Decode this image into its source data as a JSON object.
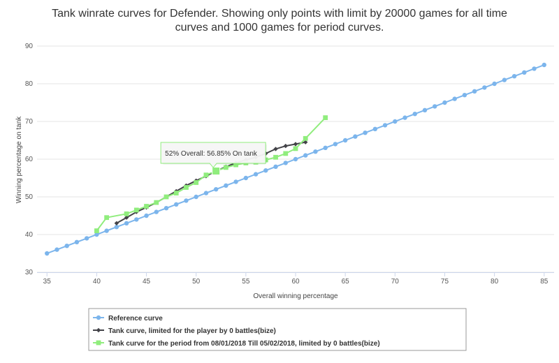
{
  "chart_data": {
    "type": "line",
    "title_line1": "Tank winrate curves for Defender. Showing only points with limit by 20000 games for all time",
    "title_line2": "curves and 1000 games for period curves.",
    "xlabel": "Overall winning percentage",
    "ylabel": "Winning percentage on tank",
    "xlim": [
      34,
      86
    ],
    "ylim": [
      30,
      90
    ],
    "x_ticks": [
      35,
      40,
      45,
      50,
      55,
      60,
      65,
      70,
      75,
      80,
      85
    ],
    "y_ticks": [
      30,
      40,
      50,
      60,
      70,
      80,
      90
    ],
    "grid": true,
    "legend_position": "bottom-left",
    "series": [
      {
        "name": "Reference curve",
        "color": "#7cb5ec",
        "marker": "circle",
        "x": [
          35,
          36,
          37,
          38,
          39,
          40,
          41,
          42,
          43,
          44,
          45,
          46,
          47,
          48,
          49,
          50,
          51,
          52,
          53,
          54,
          55,
          56,
          57,
          58,
          59,
          60,
          61,
          62,
          63,
          64,
          65,
          66,
          67,
          68,
          69,
          70,
          71,
          72,
          73,
          74,
          75,
          76,
          77,
          78,
          79,
          80,
          81,
          82,
          83,
          84,
          85
        ],
        "y": [
          35,
          36,
          37,
          38,
          39,
          40,
          41,
          42,
          43,
          44,
          45,
          46,
          47,
          48,
          49,
          50,
          51,
          52,
          53,
          54,
          55,
          56,
          57,
          58,
          59,
          60,
          61,
          62,
          63,
          64,
          65,
          66,
          67,
          68,
          69,
          70,
          71,
          72,
          73,
          74,
          75,
          76,
          77,
          78,
          79,
          80,
          81,
          82,
          83,
          84,
          85
        ]
      },
      {
        "name": "Tank curve, limited for the player by 0 battles(bize)",
        "color": "#434348",
        "marker": "diamond",
        "x": [
          42,
          43,
          44,
          45,
          46,
          47,
          48,
          49,
          50,
          51,
          52,
          53,
          54,
          55,
          56,
          57,
          58,
          59,
          60,
          61
        ],
        "y": [
          43,
          44.5,
          46,
          47.2,
          48.5,
          50,
          51.5,
          53,
          54.3,
          55.5,
          56.85,
          58,
          59,
          59.8,
          60.5,
          61.5,
          62.7,
          63.5,
          64,
          64.5
        ]
      },
      {
        "name": "Tank curve for the period from 08/01/2018 Till 05/02/2018, limited by 0 battles(bize)",
        "color": "#90ed7d",
        "marker": "square",
        "x": [
          40,
          41,
          43,
          44,
          45,
          46,
          47,
          48,
          49,
          50,
          51,
          52,
          53,
          54,
          55,
          56,
          57,
          58,
          59,
          60,
          61,
          63
        ],
        "y": [
          41,
          44.5,
          45.5,
          46.5,
          47.5,
          48.5,
          50,
          51,
          52.5,
          53.8,
          55.8,
          56.85,
          57.8,
          58.5,
          59,
          59.2,
          59.8,
          60.5,
          61.5,
          62.8,
          65.5,
          71
        ]
      }
    ],
    "tooltip": {
      "text": "52% Overall: 56.85% On tank",
      "x": 52,
      "y": 56.85,
      "border_color": "#90ed7d"
    }
  }
}
